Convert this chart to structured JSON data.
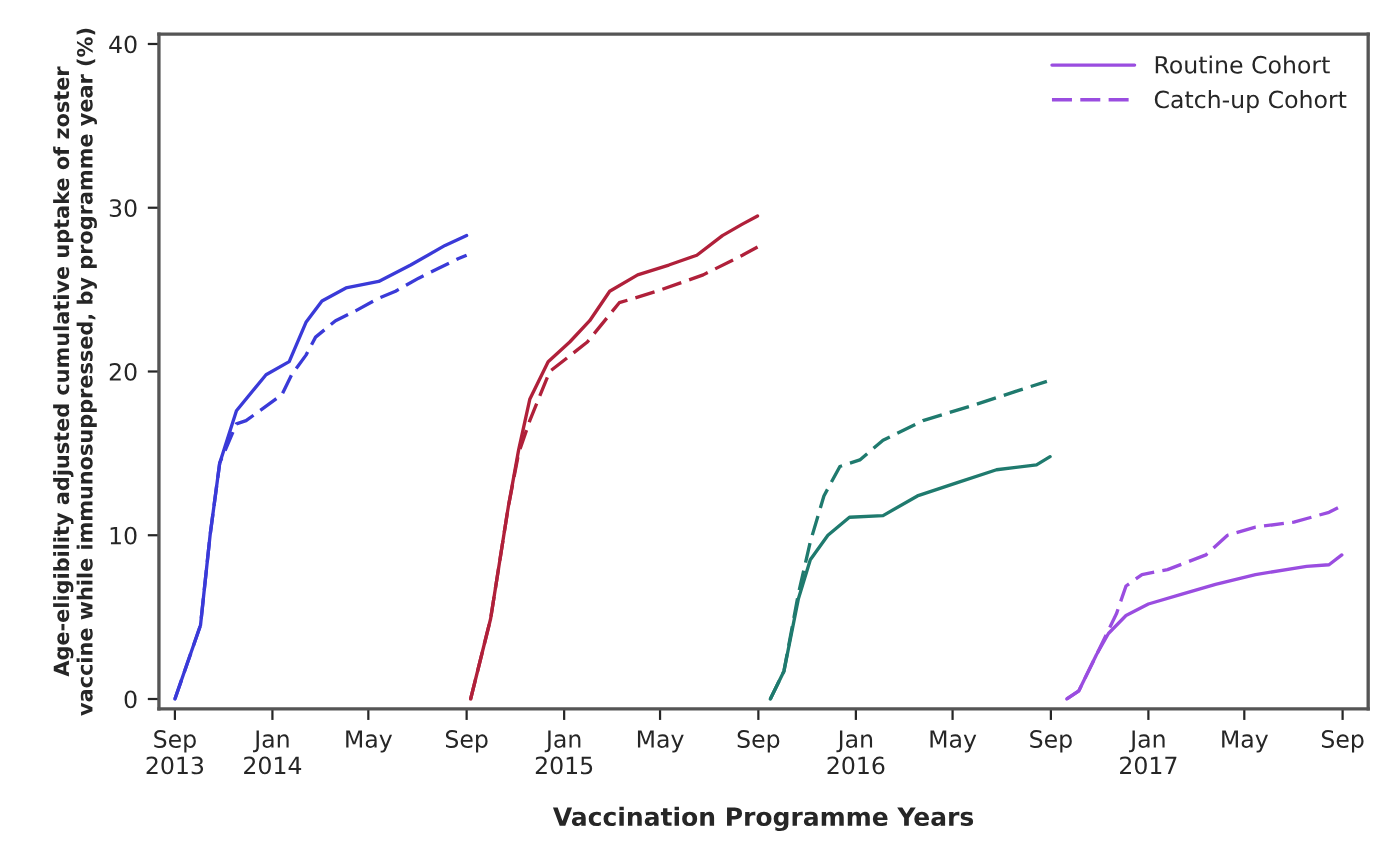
{
  "chart_data": {
    "type": "line",
    "xlabel": "Vaccination Programme Years",
    "ylabel": "Age-eligibility adjusted cumulative uptake of zoster\nvaccine while immunosuppressed, by programme year (%)",
    "xlim": [
      "2013-08-12",
      "2017-10-03"
    ],
    "ylim": [
      -0.6,
      40.6
    ],
    "yticks": [
      0,
      10,
      20,
      30,
      40
    ],
    "xticks": [
      {
        "value": "2013-09-01",
        "label": "Sep\n2013"
      },
      {
        "value": "2014-01-01",
        "label": "Jan\n2014"
      },
      {
        "value": "2014-05-01",
        "label": "May"
      },
      {
        "value": "2014-09-01",
        "label": "Sep"
      },
      {
        "value": "2015-01-01",
        "label": "Jan\n2015"
      },
      {
        "value": "2015-05-01",
        "label": "May"
      },
      {
        "value": "2015-09-01",
        "label": "Sep"
      },
      {
        "value": "2016-01-01",
        "label": "Jan\n2016"
      },
      {
        "value": "2016-05-01",
        "label": "May"
      },
      {
        "value": "2016-09-01",
        "label": "Sep"
      },
      {
        "value": "2017-01-01",
        "label": "Jan\n2017"
      },
      {
        "value": "2017-05-01",
        "label": "May"
      },
      {
        "value": "2017-09-01",
        "label": "Sep"
      }
    ],
    "grid": false,
    "legend": "top right",
    "marker": "none",
    "series": [
      {
        "color": "#3a3ad8",
        "line_style": "solid",
        "x": [
          "2013-09-01",
          "2013-10-03",
          "2013-10-15",
          "2013-10-27",
          "2013-11-17",
          "2013-12-24",
          "2014-01-22",
          "2014-02-12",
          "2014-03-04",
          "2014-04-03",
          "2014-05-14",
          "2014-06-23",
          "2014-08-05",
          "2014-09-01"
        ],
        "values": [
          0,
          4.5,
          10,
          14.4,
          17.6,
          19.8,
          20.6,
          23,
          24.3,
          25.1,
          25.5,
          26.5,
          27.7,
          28.3
        ]
      },
      {
        "color": "#3a3ad8",
        "line_style": "dashed",
        "x": [
          "2013-09-01",
          "2013-10-03",
          "2013-10-15",
          "2013-10-27",
          "2013-11-17",
          "2013-11-29",
          "2013-12-19",
          "2014-01-13",
          "2014-01-25",
          "2014-02-12",
          "2014-02-24",
          "2014-03-21",
          "2014-04-15",
          "2014-05-15",
          "2014-06-04",
          "2014-07-03",
          "2014-07-28",
          "2014-08-22",
          "2014-09-01"
        ],
        "values": [
          0,
          4.5,
          10,
          14.4,
          16.8,
          17.0,
          17.7,
          18.6,
          19.8,
          21,
          22.1,
          23.1,
          23.7,
          24.5,
          24.9,
          25.7,
          26.3,
          26.9,
          27.1
        ]
      },
      {
        "color": "#b0203a",
        "line_style": "solid",
        "x": [
          "2014-09-06",
          "2014-10-01",
          "2014-10-23",
          "2014-11-05",
          "2014-11-19",
          "2014-12-12",
          "2015-01-08",
          "2015-02-02",
          "2015-02-27",
          "2015-04-03",
          "2015-05-12",
          "2015-06-16",
          "2015-07-18",
          "2015-08-12",
          "2015-08-31"
        ],
        "values": [
          0,
          4.9,
          11.7,
          15.2,
          18.3,
          20.6,
          21.8,
          23.1,
          24.9,
          25.9,
          26.5,
          27.1,
          28.3,
          29,
          29.5
        ]
      },
      {
        "color": "#b0203a",
        "line_style": "dashed",
        "x": [
          "2014-09-06",
          "2014-10-01",
          "2014-10-23",
          "2014-11-05",
          "2014-11-19",
          "2014-12-14",
          "2015-01-30",
          "2015-03-11",
          "2015-04-27",
          "2015-06-24",
          "2015-08-12",
          "2015-08-31"
        ],
        "values": [
          0,
          4.9,
          11.7,
          15.0,
          17.0,
          20,
          21.8,
          24.2,
          24.9,
          25.9,
          27.1,
          27.6
        ]
      },
      {
        "color": "#1f7a6e",
        "line_style": "solid",
        "x": [
          "2015-09-16",
          "2015-10-03",
          "2015-10-21",
          "2015-11-05",
          "2015-11-27",
          "2015-12-24",
          "2016-02-04",
          "2016-03-18",
          "2016-05-06",
          "2016-06-25",
          "2016-08-14",
          "2016-08-31"
        ],
        "values": [
          0,
          1.7,
          6.1,
          8.5,
          10,
          11.1,
          11.2,
          12.4,
          13.2,
          14.0,
          14.3,
          14.8
        ]
      },
      {
        "color": "#1f7a6e",
        "line_style": "dashed",
        "x": [
          "2015-09-16",
          "2015-10-03",
          "2015-10-21",
          "2015-11-05",
          "2015-11-22",
          "2015-12-12",
          "2016-01-06",
          "2016-02-04",
          "2016-03-25",
          "2016-05-31",
          "2016-07-20",
          "2016-08-27"
        ],
        "values": [
          0,
          1.7,
          6.4,
          9.6,
          12.4,
          14.2,
          14.6,
          15.8,
          17.0,
          18.0,
          18.8,
          19.4
        ]
      },
      {
        "name": "Routine Cohort",
        "color": "#9a4de0",
        "line_style": "solid",
        "x": [
          "2016-09-21",
          "2016-10-06",
          "2016-10-28",
          "2016-11-12",
          "2016-12-04",
          "2017-01-01",
          "2017-02-12",
          "2017-03-26",
          "2017-05-15",
          "2017-07-18",
          "2017-08-15",
          "2017-08-31"
        ],
        "values": [
          0,
          0.5,
          2.7,
          4.0,
          5.1,
          5.8,
          6.4,
          7.0,
          7.6,
          8.1,
          8.2,
          8.8
        ]
      },
      {
        "name": "Catch-up Cohort",
        "color": "#9a4de0",
        "line_style": "dashed",
        "x": [
          "2016-09-21",
          "2016-10-06",
          "2016-10-28",
          "2016-11-22",
          "2016-12-04",
          "2016-12-24",
          "2017-01-25",
          "2017-03-14",
          "2017-04-10",
          "2017-05-15",
          "2017-07-02",
          "2017-08-15",
          "2017-08-31"
        ],
        "values": [
          0,
          0.5,
          2.7,
          5.2,
          6.9,
          7.6,
          7.9,
          8.8,
          10.0,
          10.5,
          10.8,
          11.4,
          11.8
        ]
      }
    ]
  }
}
